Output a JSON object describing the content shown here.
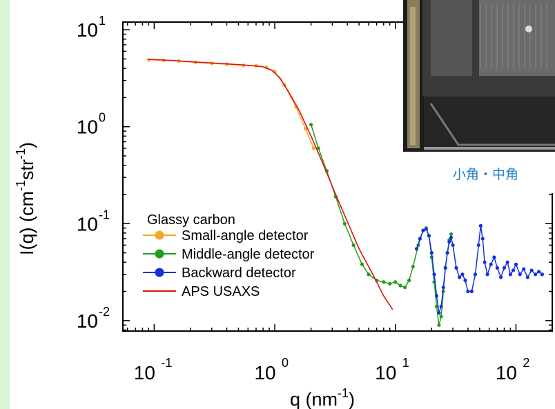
{
  "caption": "小角・中角",
  "colors": {
    "small": "#f5a623",
    "middle": "#1e9e1e",
    "backward": "#1530e0",
    "aps": "#e01010",
    "caption": "#1f7fc9",
    "background_strip": "#d8f5d6"
  },
  "chart_data": {
    "type": "line",
    "x_scale": "log",
    "y_scale": "log",
    "xlim": [
      0.055,
      200
    ],
    "ylim": [
      0.0078,
      12
    ],
    "xlabel_base": "q (nm",
    "xlabel_exp": "-1",
    "xlabel_end": ")",
    "ylabel_base": "I(q) (cm",
    "ylabel_exp1": "-1",
    "ylabel_mid": "str",
    "ylabel_exp2": "-1",
    "ylabel_end": ")",
    "x_ticks": [
      {
        "value": 0.1,
        "base": "10",
        "exp": "-1"
      },
      {
        "value": 1,
        "base": "10",
        "exp": "0"
      },
      {
        "value": 10,
        "base": "10",
        "exp": "1"
      },
      {
        "value": 100,
        "base": "10",
        "exp": "2"
      }
    ],
    "y_ticks": [
      {
        "value": 10,
        "base": "10",
        "exp": "1"
      },
      {
        "value": 1,
        "base": "10",
        "exp": "0"
      },
      {
        "value": 0.1,
        "base": "10",
        "exp": "-1"
      },
      {
        "value": 0.01,
        "base": "10",
        "exp": "-2"
      }
    ],
    "legend": {
      "title": "Glassy carbon",
      "placement": "bottom-left",
      "entries": [
        "Small-angle detector",
        "Middle-angle detector",
        "Backward detector",
        "APS USAXS"
      ]
    },
    "series": [
      {
        "name": "Small-angle detector",
        "x": [
          0.09,
          0.12,
          0.16,
          0.22,
          0.3,
          0.4,
          0.55,
          0.7,
          0.85,
          1.0,
          1.2,
          1.5,
          1.8,
          2.1
        ],
        "y": [
          4.9,
          4.85,
          4.75,
          4.6,
          4.5,
          4.4,
          4.3,
          4.25,
          4.1,
          3.7,
          2.7,
          1.6,
          0.95,
          0.6
        ]
      },
      {
        "name": "Middle-angle detector",
        "x": [
          2.0,
          2.3,
          2.7,
          3.2,
          3.8,
          4.5,
          5.3,
          6.0,
          7.0,
          8.0,
          9.0,
          10.0,
          11.0,
          12.0,
          13.0,
          14.0,
          15.5,
          17.0,
          18.0,
          19.0,
          20.0,
          21.0,
          22.0,
          23.0,
          24.0,
          25.0,
          26.0,
          27.0,
          28.0,
          29.0
        ],
        "y": [
          1.05,
          0.6,
          0.35,
          0.19,
          0.1,
          0.06,
          0.038,
          0.03,
          0.026,
          0.025,
          0.024,
          0.025,
          0.023,
          0.022,
          0.026,
          0.036,
          0.06,
          0.085,
          0.09,
          0.075,
          0.045,
          0.025,
          0.014,
          0.009,
          0.011,
          0.02,
          0.035,
          0.05,
          0.068,
          0.078
        ]
      },
      {
        "name": "Backward detector",
        "x": [
          15.0,
          16.0,
          17.0,
          18.0,
          19.0,
          20.0,
          21.0,
          22.0,
          23.0,
          24.0,
          25.0,
          26.0,
          27.0,
          28.0,
          29.0,
          30.0,
          32.0,
          34.0,
          36.0,
          38.0,
          40.0,
          43.0,
          46.0,
          49.0,
          51.0,
          53.0,
          55.0,
          58.0,
          62.0,
          66.0,
          70.0,
          75.0,
          80.0,
          85.0,
          90.0,
          95.0,
          100.0,
          108.0,
          116.0,
          125.0,
          135.0,
          145.0,
          155.0,
          165.0
        ],
        "y": [
          0.055,
          0.07,
          0.085,
          0.088,
          0.075,
          0.05,
          0.03,
          0.018,
          0.012,
          0.014,
          0.022,
          0.035,
          0.05,
          0.065,
          0.072,
          0.06,
          0.035,
          0.028,
          0.03,
          0.026,
          0.02,
          0.02,
          0.03,
          0.06,
          0.095,
          0.07,
          0.04,
          0.03,
          0.038,
          0.045,
          0.035,
          0.028,
          0.035,
          0.04,
          0.03,
          0.033,
          0.038,
          0.03,
          0.034,
          0.028,
          0.033,
          0.03,
          0.032,
          0.03
        ]
      },
      {
        "name": "APS USAXS",
        "x": [
          0.09,
          0.15,
          0.25,
          0.4,
          0.6,
          0.8,
          0.95,
          1.1,
          1.3,
          1.6,
          2.0,
          2.5,
          3.2,
          4.0,
          5.0,
          6.5,
          8.0,
          9.5
        ],
        "y": [
          4.95,
          4.8,
          4.6,
          4.45,
          4.3,
          4.15,
          3.8,
          3.2,
          2.3,
          1.45,
          0.8,
          0.42,
          0.2,
          0.105,
          0.055,
          0.03,
          0.018,
          0.013
        ]
      }
    ]
  }
}
